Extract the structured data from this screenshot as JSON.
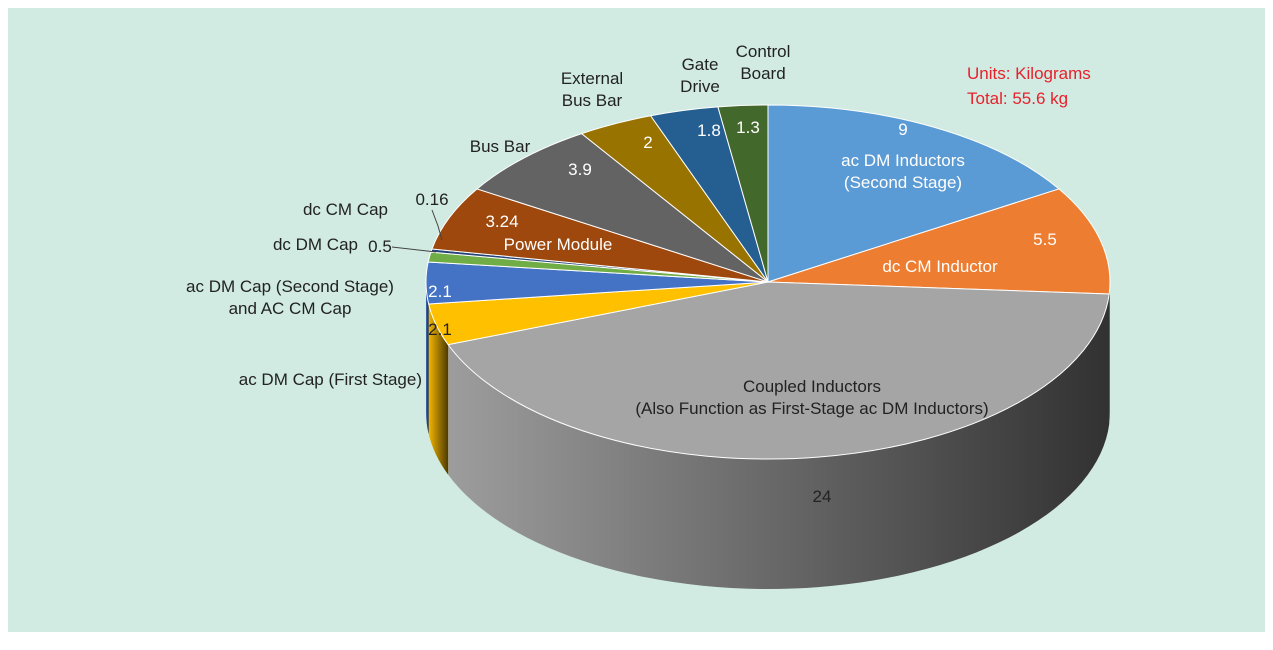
{
  "chart_data": {
    "type": "pie3d",
    "categories": [
      "ac DM Inductors\n(Second Stage)",
      "dc CM Inductor",
      "Coupled Inductors\n(Also Function as First-Stage ac DM Inductors)",
      "ac DM Cap (First Stage)",
      "ac DM Cap (Second Stage)\nand AC CM Cap",
      "dc DM Cap",
      "dc CM Cap",
      "Power Module",
      "Bus Bar",
      "External\nBus Bar",
      "Gate\nDrive",
      "Control\nBoard"
    ],
    "values": [
      9,
      5.5,
      24,
      2.1,
      2.1,
      0.5,
      0.16,
      3.24,
      3.9,
      2,
      1.8,
      1.3
    ],
    "colors": [
      "#5b9bd5",
      "#ed7d31",
      "#a5a5a5",
      "#ffc000",
      "#4472c4",
      "#70ad47",
      "#264478",
      "#9e480e",
      "#636363",
      "#997300",
      "#255e91",
      "#43682b"
    ],
    "annotations": [
      "Units: Kilograms",
      "Total: 55.6 kg"
    ]
  }
}
